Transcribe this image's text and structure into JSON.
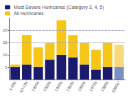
{
  "chart_data": {
    "type": "bar",
    "stacked": true,
    "categories": [
      "1-09s",
      "10-19s",
      "1920s",
      "1930s",
      "1940s",
      "1950s",
      "1960s",
      "1970s",
      "1980s",
      "1990s*"
    ],
    "series": [
      {
        "name": "Most Severe Hurricanes (Category 3, 4, 5)",
        "color": "#1a1a6e",
        "colors": [
          "#1a1a6e",
          "#1a1a6e",
          "#1a1a6e",
          "#1a1a6e",
          "#1a1a6e",
          "#1a1a6e",
          "#1a1a6e",
          "#1a1a6e",
          "#1a1a6e",
          "#7a8fc4"
        ],
        "values": [
          5,
          6,
          5,
          8,
          10,
          9,
          6,
          4,
          5,
          5
        ]
      },
      {
        "name": "All Hurricanes",
        "color": "#f5c518",
        "colors": [
          "#f5c518",
          "#f5c518",
          "#f5c518",
          "#f5c518",
          "#f5c518",
          "#f5c518",
          "#f5c518",
          "#f5c518",
          "#f5c518",
          "#f5d97a"
        ],
        "values": [
          1,
          12,
          8,
          7,
          14,
          9,
          9,
          8,
          10,
          9
        ]
      }
    ],
    "hlines": [
      {
        "value": 20,
        "line_style": "dashed",
        "color": "#9999bb"
      },
      {
        "value": 15,
        "line_style": "solid",
        "color": "#aaaaaa"
      }
    ],
    "ylim": [
      0,
      25
    ],
    "yticks": [
      5,
      10,
      15,
      20
    ],
    "grid": true,
    "legend": "upper left"
  }
}
